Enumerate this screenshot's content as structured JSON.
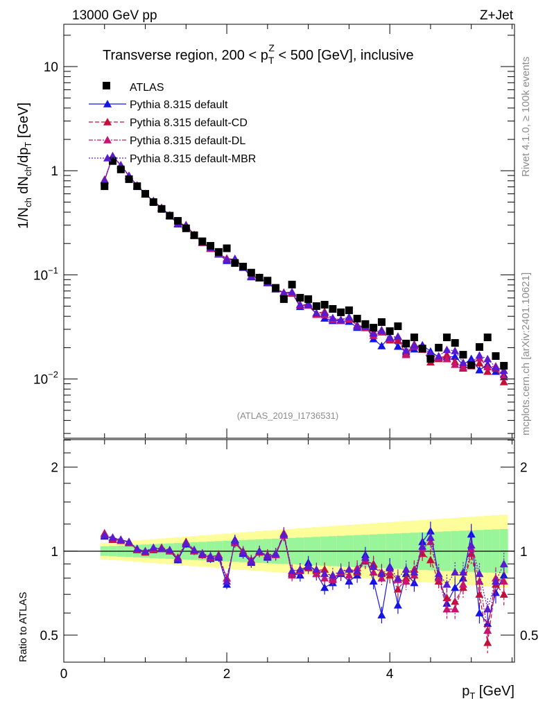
{
  "header": {
    "energy": "13000 GeV pp",
    "process": "Z+Jet"
  },
  "side_labels": {
    "rivet": "Rivet 4.1.0, ≥ 100k events",
    "mcplots": "mcplots.cern.ch [arXiv:2401.10621]"
  },
  "analysis_id": "(ATLAS_2019_I1736531)",
  "colors": {
    "ATLAS": "#000000",
    "default": "#1414e6",
    "default-CD": "#c41038",
    "default-DL": "#c8146e",
    "default-MBR": "#5a1ad2",
    "band_stat": "#99f599",
    "band_total": "#fdfd99"
  },
  "chart_data": {
    "type": "scatter",
    "title_parts": {
      "pre": "Transverse region, 200 < p",
      "sub": "T",
      "sup": "Z",
      "post": " < 500 [GeV], inclusive"
    },
    "xlabel": {
      "main": "p",
      "sub": "T",
      "post": " [GeV]"
    },
    "ylabel": {
      "a": "1/N",
      "a_sub": "ch",
      "b": " dN",
      "b_sub": "ch",
      "c": "/dp",
      "c_sub": "T",
      "d": " [GeV]"
    },
    "ratio_ylabel": "Ratio to ATLAS",
    "xlim": [
      0,
      5.53
    ],
    "ylim": [
      0.0027,
      25.5
    ],
    "yscale": "log",
    "ratio_ylim": [
      0.4,
      2.51
    ],
    "ratio_yscale": "log",
    "x_ticks": [
      "0",
      "2",
      "4"
    ],
    "x_tick_values": [
      0,
      2,
      4
    ],
    "y_ticks": [
      {
        "base": "10",
        "exp": "−2",
        "value": 0.01
      },
      {
        "base": "10",
        "exp": "−1",
        "value": 0.1
      },
      {
        "base": "1",
        "exp": "",
        "value": 1
      },
      {
        "base": "10",
        "exp": "",
        "value": 10
      }
    ],
    "ratio_ticks": [
      {
        "label": "0.5",
        "value": 0.5
      },
      {
        "label": "1",
        "value": 1
      },
      {
        "label": "2",
        "value": 2
      }
    ],
    "legend_position": "top-left",
    "x": [
      0.5,
      0.6,
      0.7,
      0.8,
      0.9,
      1.0,
      1.1,
      1.2,
      1.3,
      1.4,
      1.5,
      1.6,
      1.7,
      1.8,
      1.9,
      2.0,
      2.1,
      2.2,
      2.3,
      2.4,
      2.5,
      2.6,
      2.7,
      2.8,
      2.9,
      3.0,
      3.1,
      3.2,
      3.3,
      3.4,
      3.5,
      3.6,
      3.7,
      3.8,
      3.9,
      4.0,
      4.1,
      4.2,
      4.3,
      4.4,
      4.5,
      4.6,
      4.7,
      4.8,
      4.9,
      5.0,
      5.1,
      5.2,
      5.3,
      5.4
    ],
    "atlas": {
      "name": "ATLAS",
      "values": [
        0.71,
        1.24,
        1.03,
        0.83,
        0.71,
        0.6,
        0.5,
        0.43,
        0.37,
        0.33,
        0.28,
        0.24,
        0.21,
        0.19,
        0.166,
        0.18,
        0.13,
        0.12,
        0.105,
        0.094,
        0.088,
        0.075,
        0.0585,
        0.0807,
        0.0603,
        0.0585,
        0.0501,
        0.0517,
        0.0471,
        0.0437,
        0.0457,
        0.038,
        0.0337,
        0.0311,
        0.0352,
        0.0288,
        0.0321,
        0.0219,
        0.0251,
        0.0196,
        0.0156,
        0.02,
        0.0251,
        0.0222,
        0.0171,
        0.0136,
        0.0203,
        0.0251,
        0.0166,
        0.0134
      ]
    },
    "series": [
      {
        "name": "Pythia 8.315 default",
        "key": "default",
        "style": "solid",
        "ratio": [
          1.13,
          1.11,
          1.1,
          1.08,
          1.01,
          1.0,
          1.02,
          1.02,
          1.0,
          0.93,
          1.06,
          1.0,
          0.98,
          0.94,
          0.95,
          0.76,
          1.1,
          0.98,
          0.91,
          1.0,
          0.95,
          0.97,
          1.14,
          0.83,
          0.82,
          0.91,
          0.83,
          0.74,
          0.77,
          0.83,
          0.78,
          0.82,
          0.97,
          0.78,
          0.59,
          0.88,
          0.64,
          0.83,
          0.77,
          1.08,
          1.18,
          0.81,
          0.65,
          0.74,
          0.8,
          1.15,
          0.6,
          0.55,
          0.71,
          0.82
        ]
      },
      {
        "name": "Pythia 8.315 default-CD",
        "key": "default-CD",
        "style": "dashed",
        "ratio": [
          1.16,
          1.1,
          1.09,
          1.07,
          1.02,
          0.99,
          1.01,
          1.03,
          1.01,
          0.95,
          1.08,
          1.01,
          0.97,
          0.95,
          0.97,
          0.8,
          1.08,
          1.0,
          0.93,
          0.99,
          0.97,
          0.98,
          1.16,
          0.84,
          0.86,
          0.88,
          0.85,
          0.86,
          0.8,
          0.84,
          0.86,
          0.84,
          0.92,
          0.9,
          0.84,
          0.82,
          0.73,
          0.8,
          0.86,
          0.98,
          0.93,
          0.78,
          0.68,
          0.66,
          0.74,
          0.98,
          0.7,
          0.47,
          0.76,
          0.7
        ]
      },
      {
        "name": "Pythia 8.315 default-DL",
        "key": "default-DL",
        "style": "dashdot",
        "ratio": [
          1.15,
          1.11,
          1.1,
          1.07,
          1.01,
          1.0,
          1.02,
          1.02,
          1.0,
          0.94,
          1.07,
          1.0,
          0.98,
          0.95,
          0.96,
          0.8,
          1.07,
          0.99,
          0.92,
          1.0,
          0.96,
          0.97,
          1.14,
          0.82,
          0.85,
          0.87,
          0.83,
          0.8,
          0.79,
          0.84,
          0.82,
          0.87,
          0.93,
          0.84,
          0.8,
          0.84,
          0.79,
          0.78,
          0.82,
          1.02,
          1.08,
          0.8,
          0.62,
          0.62,
          0.76,
          1.02,
          0.78,
          0.52,
          0.8,
          0.78
        ]
      },
      {
        "name": "Pythia 8.315 default-MBR",
        "key": "default-MBR",
        "style": "dotted",
        "ratio": [
          1.14,
          1.12,
          1.1,
          1.08,
          1.02,
          1.0,
          1.03,
          1.02,
          1.01,
          0.94,
          1.07,
          1.01,
          0.98,
          0.96,
          0.96,
          0.78,
          1.09,
          0.99,
          0.92,
          1.0,
          0.96,
          0.98,
          1.15,
          0.85,
          0.86,
          0.88,
          0.86,
          0.83,
          0.82,
          0.85,
          0.86,
          0.85,
          0.95,
          0.88,
          0.83,
          0.87,
          0.8,
          0.86,
          0.84,
          1.04,
          1.12,
          0.83,
          0.76,
          0.84,
          0.84,
          1.05,
          0.83,
          0.62,
          0.78,
          0.9
        ]
      }
    ],
    "uncertainty_bands": {
      "stat_rel": [
        0.04,
        0.2
      ],
      "total_rel": [
        0.07,
        0.35
      ]
    }
  }
}
